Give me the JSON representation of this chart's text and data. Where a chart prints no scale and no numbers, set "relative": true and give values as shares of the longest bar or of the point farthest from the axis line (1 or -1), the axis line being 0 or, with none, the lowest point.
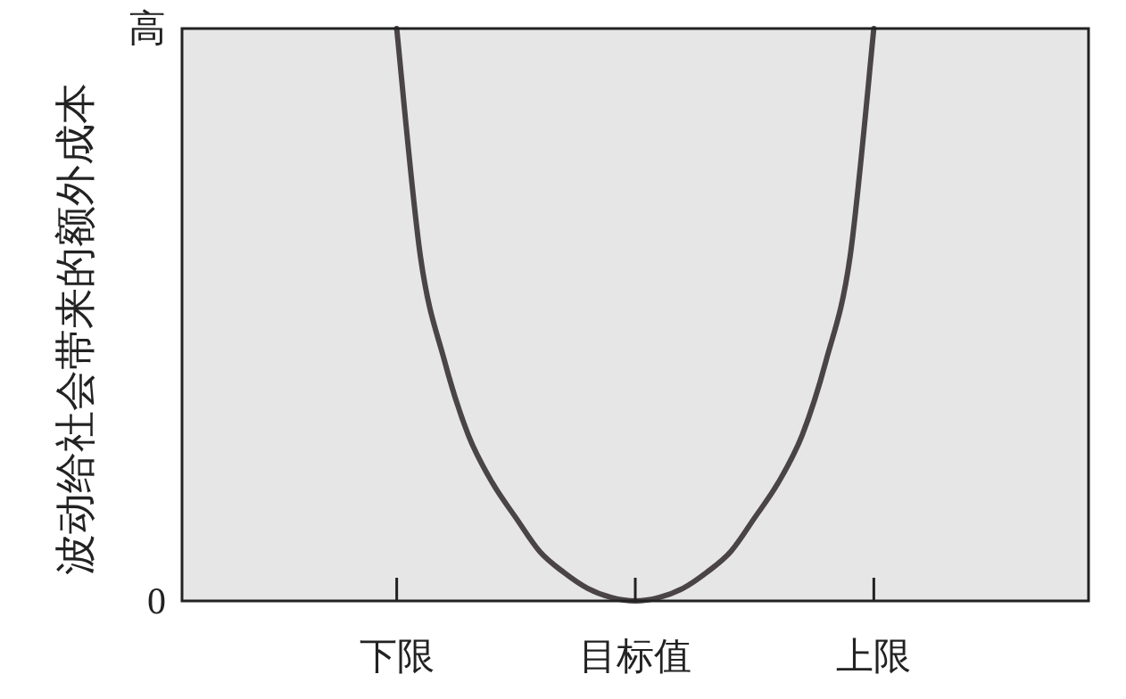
{
  "chart_data": {
    "type": "line",
    "ylabel": "波动给社会带来的额外成本",
    "relative": true,
    "categories": [
      null,
      null,
      null,
      null,
      null,
      null,
      null,
      null,
      null,
      "下限",
      null,
      null,
      null,
      null,
      null,
      null,
      null,
      null,
      null,
      "目标值",
      null,
      null,
      null,
      null,
      null,
      null,
      null,
      null,
      null,
      "上限",
      null,
      null,
      null,
      null,
      null,
      null,
      null,
      null,
      null
    ],
    "values": [
      null,
      null,
      null,
      null,
      null,
      null,
      null,
      null,
      null,
      1,
      0.6,
      0.42,
      0.29,
      0.207,
      0.145,
      0.086,
      0.05,
      0.022,
      0.006,
      0,
      0.006,
      0.022,
      0.05,
      0.086,
      0.145,
      0.207,
      0.29,
      0.42,
      0.6,
      1,
      null,
      null,
      null,
      null,
      null,
      null,
      null,
      null,
      null
    ],
    "color": "#4a4446",
    "annotations": [
      "0",
      "高"
    ]
  }
}
